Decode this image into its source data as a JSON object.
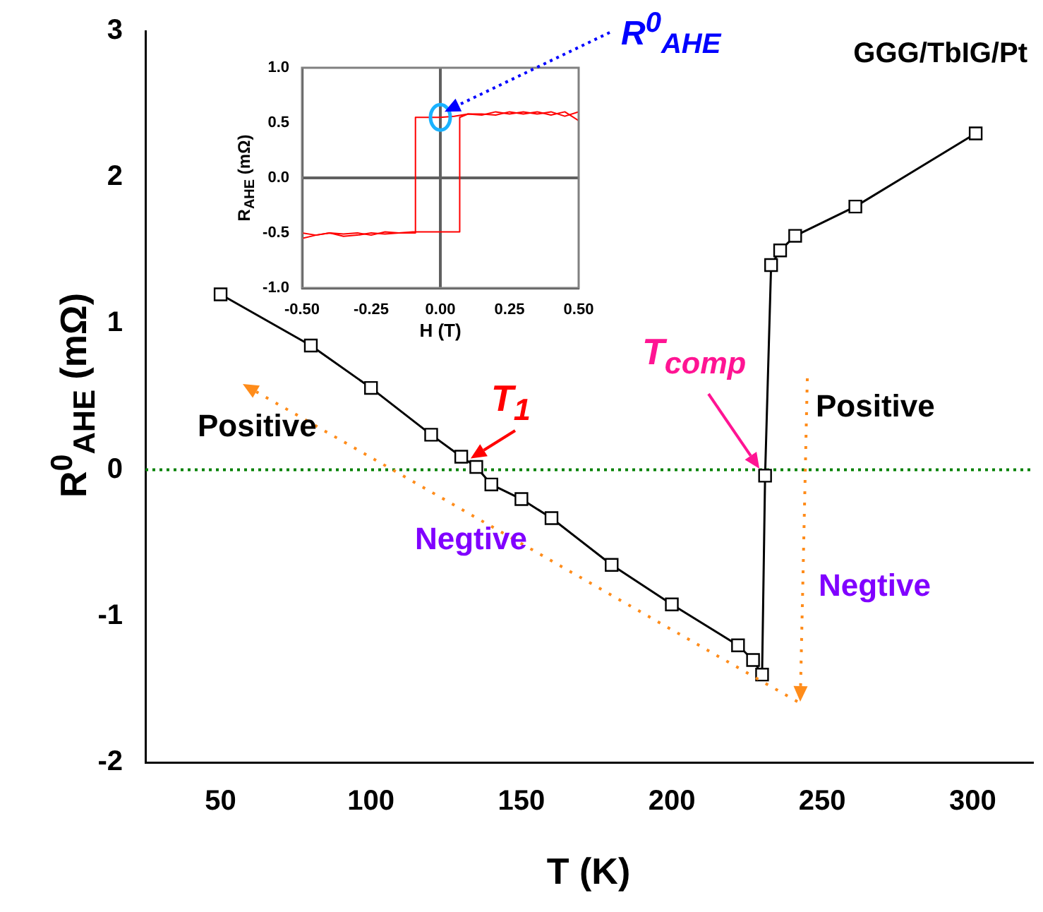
{
  "chart_data": [
    {
      "type": "line",
      "xlabel": "T (K)",
      "ylabel": "R$^{0}$$_{AHE}$ (mΩ)",
      "color": "#000000",
      "marker": "square",
      "x": [
        50,
        80,
        100,
        120,
        130,
        135,
        140,
        150,
        160,
        180,
        200,
        222,
        227,
        230,
        231,
        233,
        236,
        241,
        261,
        301
      ],
      "values": [
        1.2,
        0.85,
        0.56,
        0.24,
        0.09,
        0.02,
        -0.1,
        -0.2,
        -0.33,
        -0.65,
        -0.92,
        -1.2,
        -1.3,
        -1.4,
        -0.04,
        1.4,
        1.5,
        1.6,
        1.8,
        2.3
      ],
      "xlim": [
        25,
        320
      ],
      "xticks": [
        50,
        100,
        150,
        200,
        250,
        300
      ],
      "ylim": [
        -2,
        3
      ],
      "yticks": [
        -2,
        -1,
        0,
        1,
        2,
        3
      ],
      "ref_lines": [
        {
          "axis": "y",
          "value": 0,
          "color": "#008000",
          "line_style": "dotted"
        }
      ],
      "annotations": [
        "GGG/TbIG/Pt",
        "Positive",
        "Positive",
        "Negtive",
        "Negtive",
        {
          "text": "T$_{1}$",
          "x": 135,
          "y": 0.02
        },
        {
          "text": "T$_{comp}$",
          "x": 231,
          "y": -0.04
        }
      ]
    },
    {
      "type": "line",
      "xlabel": "H (T)",
      "ylabel": "R$_{AHE}$ (mΩ)",
      "marker": "none",
      "series": [
        {
          "color": "#ff0000",
          "x": [
            0.5,
            0.45,
            0.4,
            0.35,
            0.3,
            0.25,
            0.2,
            0.15,
            0.1,
            0.05,
            0,
            -0.05,
            -0.09,
            -0.09,
            -0.15,
            -0.2,
            -0.25,
            -0.3,
            -0.35,
            -0.4,
            -0.45,
            -0.5
          ],
          "values": [
            0.52,
            0.6,
            0.57,
            0.6,
            0.58,
            0.6,
            0.57,
            0.58,
            0.58,
            0.56,
            0.55,
            0.55,
            0.55,
            -0.5,
            -0.5,
            -0.49,
            -0.52,
            -0.5,
            -0.51,
            -0.5,
            -0.52,
            -0.55
          ]
        },
        {
          "color": "#ff0000",
          "x": [
            -0.5,
            -0.45,
            -0.4,
            -0.35,
            -0.3,
            -0.25,
            -0.2,
            -0.15,
            -0.1,
            -0.05,
            0,
            0.05,
            0.07,
            0.07,
            0.1,
            0.15,
            0.2,
            0.25,
            0.3,
            0.35,
            0.4,
            0.45,
            0.5
          ],
          "values": [
            -0.5,
            -0.52,
            -0.5,
            -0.53,
            -0.52,
            -0.5,
            -0.51,
            -0.5,
            -0.49,
            -0.49,
            -0.49,
            -0.49,
            -0.49,
            0.55,
            0.58,
            0.57,
            0.6,
            0.58,
            0.6,
            0.58,
            0.6,
            0.56,
            0.6
          ]
        }
      ],
      "xlim": [
        -0.5,
        0.5
      ],
      "xticks": [
        {
          "value": -0.5,
          "label": "-0.50"
        },
        {
          "value": -0.25,
          "label": "-0.25"
        },
        {
          "value": 0,
          "label": "0.00"
        },
        {
          "value": 0.25,
          "label": "0.25"
        },
        {
          "value": 0.5,
          "label": "0.50"
        }
      ],
      "ylim": [
        -1,
        1
      ],
      "yticks": [
        {
          "value": -1,
          "label": "-1.0"
        },
        {
          "value": -0.5,
          "label": "-0.5"
        },
        {
          "value": 0,
          "label": "0.0"
        },
        {
          "value": 0.5,
          "label": "0.5"
        },
        {
          "value": 1,
          "label": "1.0"
        }
      ],
      "ref_lines": [
        {
          "axis": "x",
          "value": 0,
          "color": "#606060",
          "line_style": "solid"
        },
        {
          "axis": "y",
          "value": 0,
          "color": "#606060",
          "line_style": "solid"
        }
      ],
      "annotations": [
        "R$^{0}$$_{AHE}$"
      ]
    }
  ]
}
